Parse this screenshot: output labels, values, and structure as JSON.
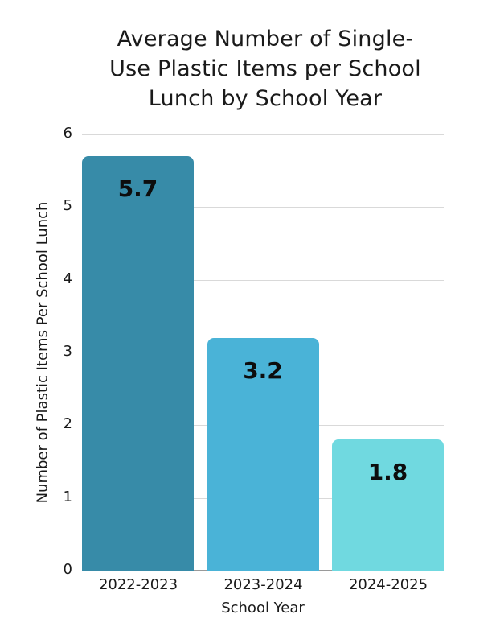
{
  "chart_data": {
    "type": "bar",
    "title": "Average Number of Single-Use Plastic Items per School Lunch by School Year",
    "title_lines": [
      "Average Number of Single-",
      "Use Plastic Items per School",
      "Lunch by School Year"
    ],
    "categories": [
      "2022-2023",
      "2023-2024",
      "2024-2025"
    ],
    "values": [
      5.7,
      3.2,
      1.8
    ],
    "value_labels": [
      "5.7",
      "3.2",
      "1.8"
    ],
    "colors": [
      "#378BA8",
      "#4AB3D7",
      "#70D9E0"
    ],
    "xlabel": "School Year",
    "ylabel": "Number of Plastic Items Per School Lunch",
    "ylim": [
      0,
      6
    ],
    "yticks": [
      "0",
      "1",
      "2",
      "3",
      "4",
      "5",
      "6"
    ],
    "grid": true,
    "legend": null
  }
}
